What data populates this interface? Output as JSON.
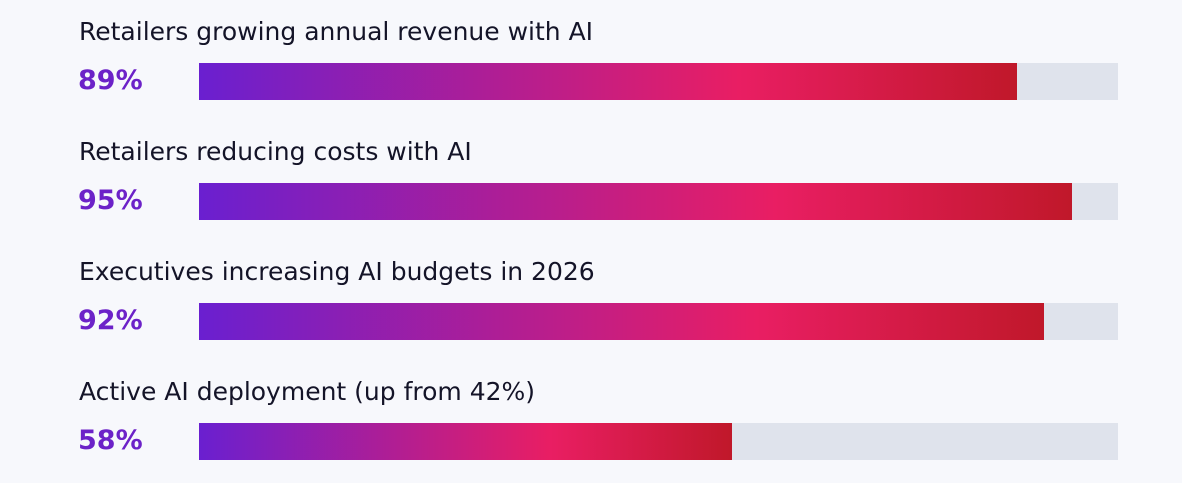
{
  "chart_data": {
    "type": "bar",
    "orientation": "horizontal",
    "categories": [
      "Retailers growing annual revenue with AI",
      "Retailers reducing costs with AI",
      "Executives increasing AI budgets in 2026",
      "Active AI deployment (up from 42%)"
    ],
    "value_labels": [
      "89%",
      "95%",
      "92%",
      "58%"
    ],
    "values": [
      89,
      95,
      92,
      58
    ],
    "xlim": [
      0,
      100
    ],
    "grid": false,
    "legend": "none",
    "colors": {
      "gradient_start": "#6a1fd0",
      "gradient_mid": "#e91e63",
      "gradient_end": "#c0182a",
      "track": "#dfe3ec",
      "value_text": "#6c22c8",
      "label_text": "#141428",
      "background": "#f7f8fc"
    }
  }
}
